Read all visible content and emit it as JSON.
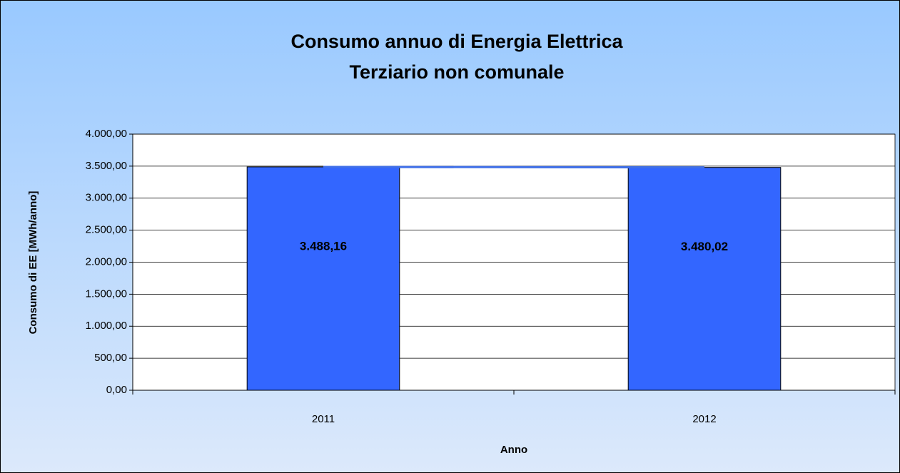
{
  "chart_data": {
    "type": "bar",
    "title": "Consumo annuo di Energia Elettrica",
    "subtitle": "Terziario non comunale",
    "x_label": "Anno",
    "y_label": "Consumo di EE [MWh/anno]",
    "categories": [
      "2011",
      "2012"
    ],
    "values": [
      3488.16,
      3480.02
    ],
    "value_labels": [
      "3.488,16",
      "3.480,02"
    ],
    "color": "#3366ff",
    "line_color": "#3f6fe8",
    "ylim": [
      0,
      4000
    ],
    "yticks": [
      {
        "value": 0,
        "label": "0,00"
      },
      {
        "value": 500,
        "label": "500,00"
      },
      {
        "value": 1000,
        "label": "1.000,00"
      },
      {
        "value": 1500,
        "label": "1.500,00"
      },
      {
        "value": 2000,
        "label": "2.000,00"
      },
      {
        "value": 2500,
        "label": "2.500,00"
      },
      {
        "value": 3000,
        "label": "3.000,00"
      },
      {
        "value": 3500,
        "label": "3.500,00"
      },
      {
        "value": 4000,
        "label": "4.000,00"
      }
    ],
    "grid": true
  }
}
